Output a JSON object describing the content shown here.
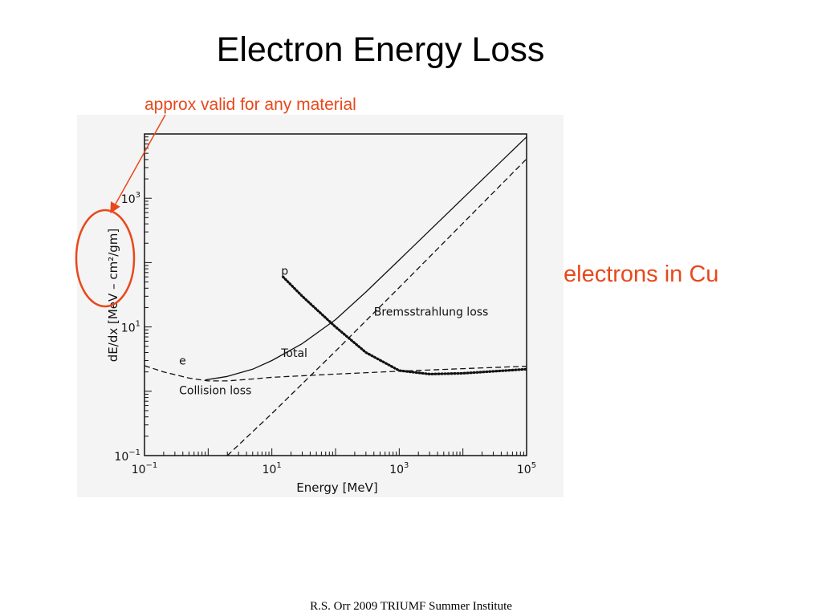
{
  "slide": {
    "title": "Electron Energy Loss",
    "note": "approx valid for any material",
    "side_label": "electrons in Cu",
    "footer": "R.S. Orr 2009 TRIUMF Summer Institute"
  },
  "colors": {
    "accent": "#e8481b",
    "ink": "#111111"
  },
  "chart_data": {
    "type": "line",
    "xlabel": "Energy [MeV]",
    "ylabel": "dE/dx [MeV – cm²/gm]",
    "x_scale": "log",
    "y_scale": "log",
    "xlim": [
      0.1,
      100000
    ],
    "ylim": [
      0.1,
      10000
    ],
    "x_ticks": [
      {
        "value": 0.1,
        "base": "10",
        "exp": "−1"
      },
      {
        "value": 10,
        "base": "10",
        "exp": "1"
      },
      {
        "value": 1000,
        "base": "10",
        "exp": "3"
      },
      {
        "value": 100000,
        "base": "10",
        "exp": "5"
      }
    ],
    "y_ticks": [
      {
        "value": 0.1,
        "base": "10",
        "exp": "−1"
      },
      {
        "value": 10,
        "base": "10",
        "exp": "1"
      },
      {
        "value": 1000,
        "base": "10",
        "exp": "3"
      }
    ],
    "series": [
      {
        "name": "Total",
        "style": "solid",
        "x": [
          0.9,
          2,
          5,
          10,
          30,
          100,
          300,
          1000,
          10000,
          100000
        ],
        "y": [
          1.5,
          1.7,
          2.2,
          3.0,
          5.5,
          13,
          35,
          110,
          1000,
          9000
        ]
      },
      {
        "name": "Collision loss",
        "style": "dashed",
        "x": [
          0.1,
          0.2,
          0.5,
          1,
          2,
          5,
          10,
          100,
          1000,
          10000,
          100000
        ],
        "y": [
          2.5,
          2.0,
          1.6,
          1.45,
          1.45,
          1.55,
          1.65,
          1.85,
          2.05,
          2.25,
          2.45
        ]
      },
      {
        "name": "Bremsstrahlung loss",
        "style": "dashed",
        "x": [
          2,
          10,
          100,
          1000,
          10000,
          100000
        ],
        "y": [
          0.1,
          0.45,
          4.2,
          41,
          410,
          4100
        ]
      },
      {
        "name": "p",
        "style": "dotted",
        "x": [
          15,
          30,
          100,
          300,
          1000,
          3000,
          10000,
          100000
        ],
        "y": [
          60,
          30,
          10,
          4.0,
          2.1,
          1.85,
          1.9,
          2.2
        ]
      }
    ],
    "curve_labels": [
      {
        "text": "e",
        "x": 0.35,
        "y": 2.6
      },
      {
        "text": "Total",
        "x": 14,
        "y": 3.4
      },
      {
        "text": "Collision loss",
        "x": 0.35,
        "y": 0.9
      },
      {
        "text": "Bremsstrahlung loss",
        "x": 400,
        "y": 15
      },
      {
        "text": "p",
        "x": 14,
        "y": 65
      }
    ],
    "annotations": [
      "approx valid for any material"
    ]
  }
}
